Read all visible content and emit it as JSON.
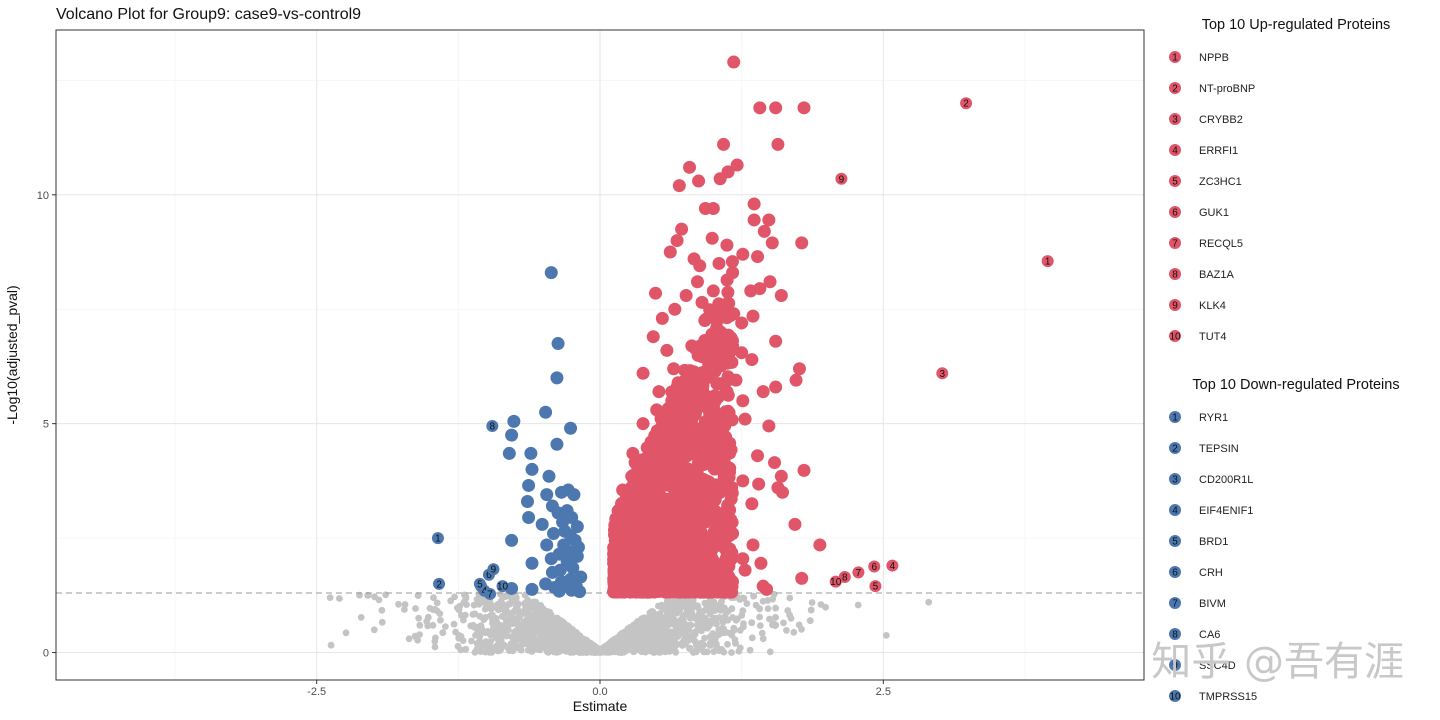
{
  "colors": {
    "up": "#E05668",
    "down": "#4C78AF",
    "ns": "#C4C4C4",
    "threshold": "#999999"
  },
  "watermark": "知乎 @吾有涯",
  "chart_data": {
    "type": "scatter",
    "title": "Volcano Plot for Group9: case9-vs-control9",
    "xlabel": "Estimate",
    "ylabel": "-Log10(adjusted_pval)",
    "xlim": [
      -4.8,
      4.8
    ],
    "ylim": [
      -0.6,
      13.6
    ],
    "xticks": [
      -2.5,
      0.0,
      2.5
    ],
    "xtick_labels": [
      "-2.5",
      "0.0",
      "2.5"
    ],
    "yticks": [
      0,
      5,
      10
    ],
    "ytick_labels": [
      "0",
      "5",
      "10"
    ],
    "threshold_y": 1.3,
    "grid": true,
    "legend_position": "right",
    "up_title": "Top 10 Up-regulated Proteins",
    "down_title": "Top 10 Down-regulated Proteins",
    "up_top": [
      {
        "rank": "1",
        "name": "NPPB",
        "x": 3.95,
        "y": 8.55
      },
      {
        "rank": "2",
        "name": "NT-proBNP",
        "x": 3.23,
        "y": 12.0
      },
      {
        "rank": "3",
        "name": "CRYBB2",
        "x": 3.02,
        "y": 6.1
      },
      {
        "rank": "4",
        "name": "ERRFI1",
        "x": 2.58,
        "y": 1.9
      },
      {
        "rank": "5",
        "name": "ZC3HC1",
        "x": 2.43,
        "y": 1.45
      },
      {
        "rank": "6",
        "name": "GUK1",
        "x": 2.42,
        "y": 1.88
      },
      {
        "rank": "7",
        "name": "RECQL5",
        "x": 2.28,
        "y": 1.75
      },
      {
        "rank": "8",
        "name": "BAZ1A",
        "x": 2.16,
        "y": 1.65
      },
      {
        "rank": "9",
        "name": "KLK4",
        "x": 2.13,
        "y": 10.35
      },
      {
        "rank": "10",
        "name": "TUT4",
        "x": 2.08,
        "y": 1.55
      }
    ],
    "down_top": [
      {
        "rank": "1",
        "name": "RYR1",
        "x": -1.43,
        "y": 2.5
      },
      {
        "rank": "2",
        "name": "TEPSIN",
        "x": -1.42,
        "y": 1.5
      },
      {
        "rank": "3",
        "name": "CD200R1L",
        "x": -1.05,
        "y": 1.45
      },
      {
        "rank": "4",
        "name": "EIF4ENIF1",
        "x": -1.02,
        "y": 1.35
      },
      {
        "rank": "5",
        "name": "BRD1",
        "x": -1.06,
        "y": 1.5
      },
      {
        "rank": "6",
        "name": "CRH",
        "x": -0.98,
        "y": 1.7
      },
      {
        "rank": "7",
        "name": "BIVM",
        "x": -0.97,
        "y": 1.28
      },
      {
        "rank": "8",
        "name": "CA6",
        "x": -0.95,
        "y": 4.95
      },
      {
        "rank": "9",
        "name": "SSC4D",
        "x": -0.94,
        "y": 1.82
      },
      {
        "rank": "10",
        "name": "TMPRSS15",
        "x": -0.86,
        "y": 1.45
      }
    ],
    "down_points": [
      [
        -0.43,
        8.3
      ],
      [
        -0.37,
        6.75
      ],
      [
        -0.38,
        6.0
      ],
      [
        -0.48,
        5.25
      ],
      [
        -0.76,
        5.05
      ],
      [
        -0.26,
        4.9
      ],
      [
        -0.78,
        4.75
      ],
      [
        -0.38,
        4.55
      ],
      [
        -0.61,
        4.35
      ],
      [
        -0.8,
        4.35
      ],
      [
        -0.6,
        4.0
      ],
      [
        -0.45,
        3.85
      ],
      [
        -0.63,
        3.65
      ],
      [
        -0.28,
        3.55
      ],
      [
        -0.34,
        3.5
      ],
      [
        -0.47,
        3.45
      ],
      [
        -0.23,
        3.45
      ],
      [
        -0.64,
        3.3
      ],
      [
        -0.42,
        3.2
      ],
      [
        -0.29,
        3.1
      ],
      [
        -0.37,
        3.05
      ],
      [
        -0.25,
        2.95
      ],
      [
        -0.33,
        2.85
      ],
      [
        -0.51,
        2.8
      ],
      [
        -0.63,
        2.95
      ],
      [
        -0.2,
        2.75
      ],
      [
        -0.31,
        2.65
      ],
      [
        -0.41,
        2.6
      ],
      [
        -0.26,
        2.55
      ],
      [
        -0.78,
        2.45
      ],
      [
        -0.22,
        2.45
      ],
      [
        -0.47,
        2.35
      ],
      [
        -0.32,
        2.35
      ],
      [
        -0.19,
        2.3
      ],
      [
        -0.27,
        2.2
      ],
      [
        -0.36,
        2.15
      ],
      [
        -0.2,
        2.1
      ],
      [
        -0.43,
        2.05
      ],
      [
        -0.29,
        2.0
      ],
      [
        -0.6,
        1.95
      ],
      [
        -0.24,
        1.85
      ],
      [
        -0.35,
        1.8
      ],
      [
        -0.42,
        1.75
      ],
      [
        -0.17,
        1.65
      ],
      [
        -0.26,
        1.6
      ],
      [
        -0.34,
        1.55
      ],
      [
        -0.48,
        1.5
      ],
      [
        -0.21,
        1.45
      ],
      [
        -0.29,
        1.45
      ],
      [
        -0.4,
        1.42
      ],
      [
        -0.6,
        1.38
      ],
      [
        -0.25,
        1.36
      ],
      [
        -0.36,
        1.34
      ],
      [
        -0.18,
        1.33
      ],
      [
        -0.78,
        1.4
      ]
    ],
    "up_points": [
      [
        1.18,
        12.9
      ],
      [
        1.55,
        11.9
      ],
      [
        1.8,
        11.9
      ],
      [
        1.41,
        11.9
      ],
      [
        1.09,
        11.1
      ],
      [
        1.57,
        11.1
      ],
      [
        1.21,
        10.65
      ],
      [
        0.79,
        10.6
      ],
      [
        1.13,
        10.5
      ],
      [
        1.06,
        10.35
      ],
      [
        0.87,
        10.3
      ],
      [
        0.7,
        10.2
      ],
      [
        1.36,
        9.8
      ],
      [
        1.49,
        9.45
      ],
      [
        1.36,
        9.45
      ],
      [
        0.93,
        9.7
      ],
      [
        1.0,
        9.7
      ],
      [
        0.72,
        9.25
      ],
      [
        1.45,
        9.2
      ],
      [
        1.78,
        8.95
      ],
      [
        1.52,
        8.95
      ],
      [
        0.99,
        9.05
      ],
      [
        0.68,
        9.0
      ],
      [
        1.12,
        8.9
      ],
      [
        0.62,
        8.75
      ],
      [
        1.26,
        8.7
      ],
      [
        1.39,
        8.65
      ],
      [
        0.83,
        8.6
      ],
      [
        0.88,
        8.45
      ],
      [
        1.05,
        8.5
      ],
      [
        1.17,
        8.3
      ],
      [
        1.5,
        8.1
      ],
      [
        1.41,
        7.95
      ],
      [
        1.33,
        7.9
      ],
      [
        1.6,
        7.8
      ],
      [
        0.49,
        7.85
      ],
      [
        1.18,
        7.4
      ],
      [
        1.25,
        7.2
      ],
      [
        1.35,
        7.35
      ],
      [
        0.66,
        7.5
      ],
      [
        0.55,
        7.3
      ],
      [
        0.9,
        7.65
      ],
      [
        1.0,
        7.9
      ],
      [
        1.55,
        6.8
      ],
      [
        1.25,
        6.55
      ],
      [
        0.47,
        6.9
      ],
      [
        1.17,
        6.7
      ],
      [
        1.34,
        6.4
      ],
      [
        1.76,
        6.2
      ],
      [
        1.73,
        5.95
      ],
      [
        1.55,
        5.8
      ],
      [
        1.44,
        5.7
      ],
      [
        1.26,
        5.5
      ],
      [
        0.38,
        6.1
      ],
      [
        1.2,
        5.95
      ],
      [
        1.0,
        5.4
      ],
      [
        1.1,
        4.95
      ],
      [
        1.28,
        5.1
      ],
      [
        1.49,
        4.95
      ],
      [
        1.39,
        4.3
      ],
      [
        1.54,
        4.15
      ],
      [
        1.8,
        3.98
      ],
      [
        1.6,
        3.85
      ],
      [
        1.57,
        3.6
      ],
      [
        1.26,
        3.75
      ],
      [
        1.4,
        3.68
      ],
      [
        1.61,
        3.5
      ],
      [
        1.34,
        3.25
      ],
      [
        1.72,
        2.8
      ],
      [
        1.94,
        2.35
      ],
      [
        1.17,
        2.6
      ],
      [
        1.35,
        2.35
      ],
      [
        1.78,
        1.62
      ],
      [
        1.28,
        1.8
      ],
      [
        1.42,
        1.95
      ],
      [
        1.44,
        1.45
      ],
      [
        1.47,
        1.38
      ],
      [
        1.26,
        2.05
      ],
      [
        1.12,
        2.2
      ],
      [
        0.2,
        3.55
      ],
      [
        0.13,
        2.05
      ],
      [
        0.29,
        4.35
      ],
      [
        0.28,
        3.85
      ],
      [
        0.31,
        4.15
      ],
      [
        0.45,
        4.6
      ],
      [
        0.38,
        5.0
      ],
      [
        0.5,
        5.3
      ],
      [
        0.52,
        5.7
      ],
      [
        0.36,
        2.1
      ],
      [
        0.42,
        2.8
      ],
      [
        0.6,
        2.4
      ],
      [
        0.77,
        3.0
      ],
      [
        0.95,
        3.5
      ],
      [
        1.08,
        4.1
      ],
      [
        0.84,
        4.6
      ],
      [
        0.74,
        5.2
      ],
      [
        0.65,
        6.2
      ],
      [
        0.81,
        6.7
      ],
      [
        0.96,
        6.3
      ],
      [
        1.03,
        7.1
      ],
      [
        0.86,
        8.1
      ],
      [
        0.76,
        7.8
      ],
      [
        0.59,
        6.6
      ],
      [
        0.68,
        5.6
      ],
      [
        0.9,
        5.9
      ]
    ]
  }
}
